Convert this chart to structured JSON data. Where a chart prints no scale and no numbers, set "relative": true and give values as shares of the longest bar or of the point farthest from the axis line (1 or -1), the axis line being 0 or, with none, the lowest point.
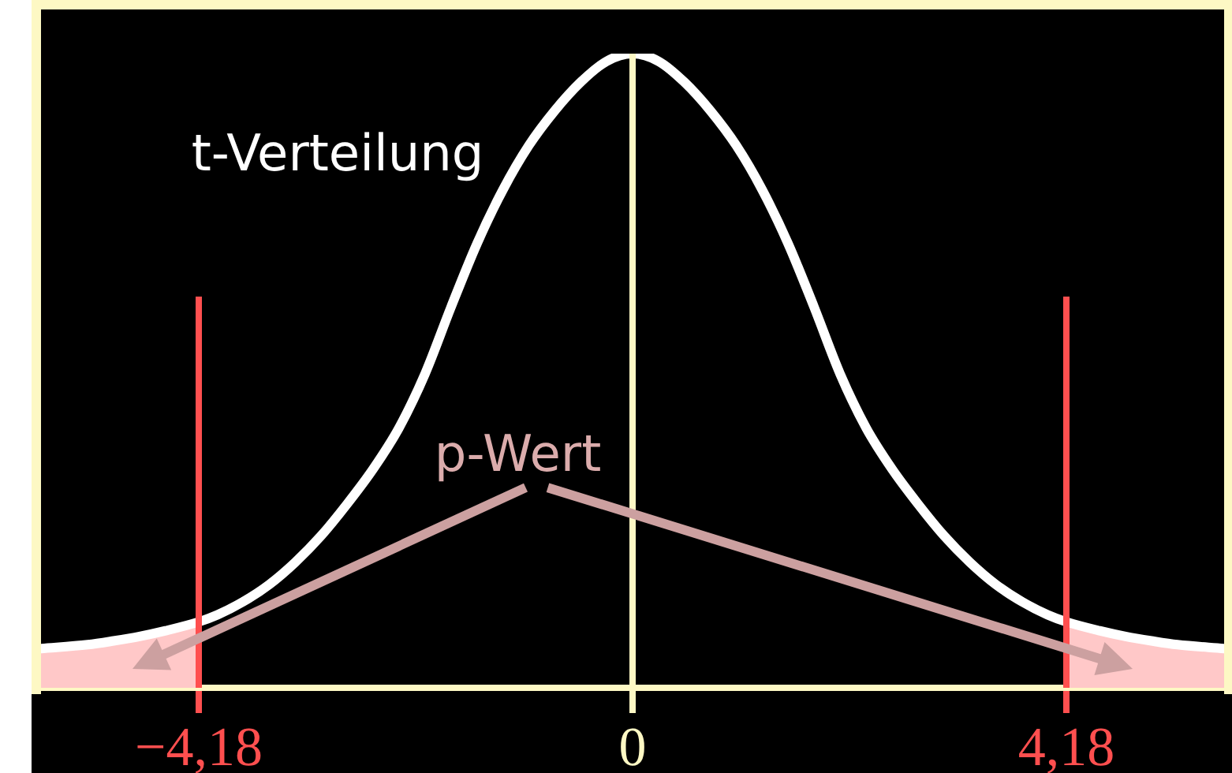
{
  "chart_data": {
    "type": "line",
    "relative": true,
    "x": [
      -5.7,
      -5.25,
      -5,
      -4.75,
      -4.5,
      -4.18,
      -4,
      -3.75,
      -3.5,
      -3.25,
      -3,
      -2.75,
      -2.5,
      -2.25,
      -2,
      -1.75,
      -1.5,
      -1.25,
      -1,
      -0.75,
      -0.5,
      -0.25,
      0,
      0.25,
      0.5,
      0.75,
      1,
      1.25,
      1.5,
      1.75,
      2,
      2.25,
      2.5,
      2.75,
      3,
      3.25,
      3.5,
      3.75,
      4,
      4.18,
      4.5,
      4.75,
      5,
      5.25,
      5.7
    ],
    "series": [
      {
        "name": "t-Verteilung",
        "color": "#ffffff",
        "values": [
          0.062,
          0.068,
          0.074,
          0.081,
          0.09,
          0.104,
          0.115,
          0.136,
          0.163,
          0.198,
          0.24,
          0.29,
          0.345,
          0.41,
          0.495,
          0.6,
          0.7,
          0.785,
          0.855,
          0.91,
          0.955,
          0.988,
          1,
          0.988,
          0.955,
          0.91,
          0.855,
          0.785,
          0.7,
          0.6,
          0.495,
          0.41,
          0.345,
          0.29,
          0.24,
          0.198,
          0.163,
          0.136,
          0.115,
          0.104,
          0.09,
          0.081,
          0.074,
          0.068,
          0.062
        ]
      },
      {
        "name": "p-Wert",
        "type": "area",
        "color": "#ffc8c8",
        "x": [
          -5.7,
          -5.25,
          -5,
          -4.75,
          -4.5,
          -4.18,
          0,
          4.18,
          4.5,
          4.75,
          5,
          5.25,
          5.7
        ],
        "values": [
          0.062,
          0.068,
          0.074,
          0.081,
          0.09,
          0.104,
          null,
          0.104,
          0.09,
          0.081,
          0.074,
          0.068,
          0.062
        ]
      }
    ],
    "xlim": [
      -5.7,
      5.7
    ],
    "xticks": [
      {
        "value": -4.18,
        "label": "−4,18"
      },
      0,
      {
        "value": 4.18,
        "label": "4,18"
      }
    ],
    "ref_lines": [
      {
        "axis": "x",
        "value": -4.18,
        "color": "#ff4f4f"
      },
      {
        "axis": "x",
        "value": 0,
        "color": "#fdf8c4"
      },
      {
        "axis": "x",
        "value": 4.18,
        "color": "#ff4f4f"
      }
    ]
  }
}
